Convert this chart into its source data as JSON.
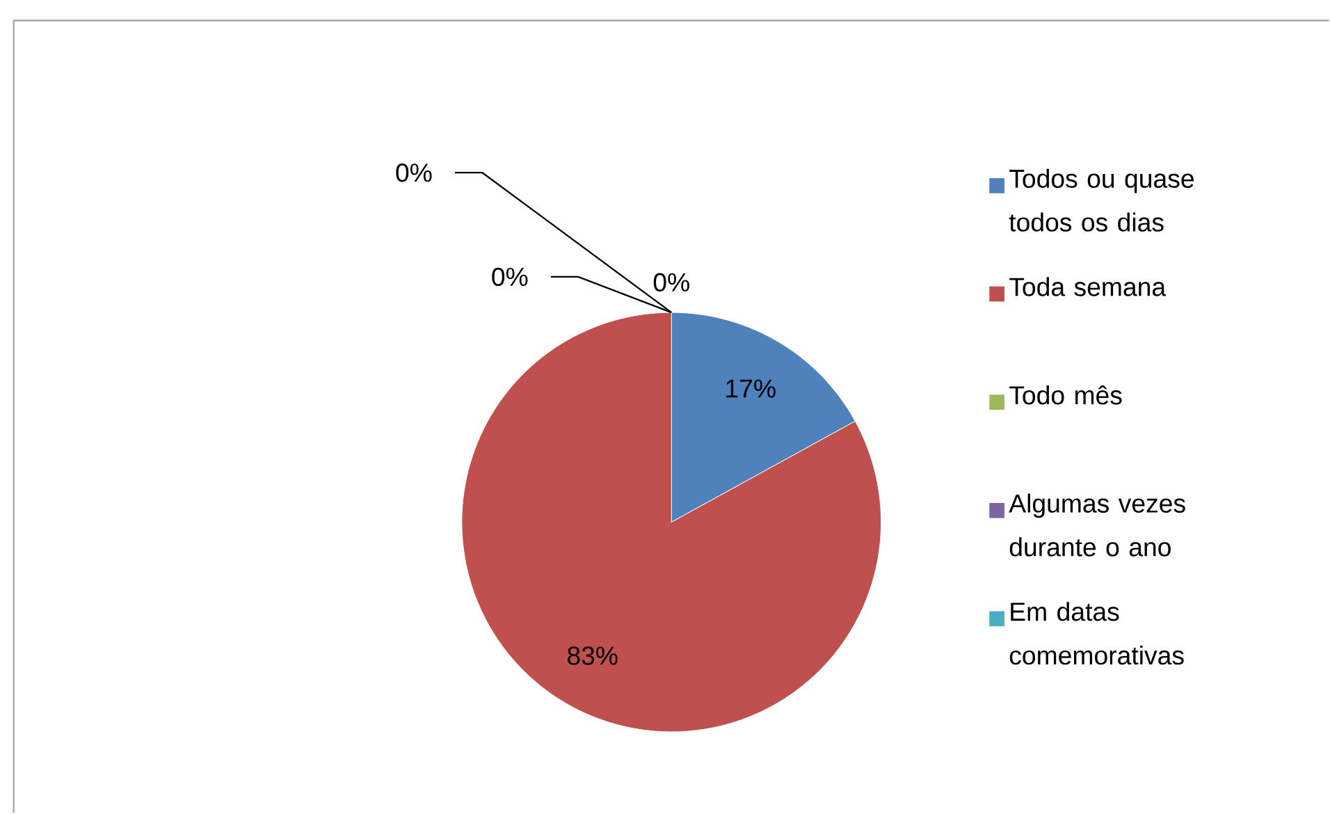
{
  "chart_data": {
    "type": "pie",
    "categories": [
      "Todos ou quase todos os dias",
      "Toda semana",
      "Todo mês",
      "Algumas vezes durante o ano",
      "Em datas comemorativas"
    ],
    "values": [
      17,
      83,
      0,
      0,
      0
    ],
    "colors": [
      "#4f81bd",
      "#c0504d",
      "#9bbb59",
      "#8064a2",
      "#4bacc6"
    ],
    "value_labels": [
      "17%",
      "83%",
      "0%",
      "0%",
      "0%"
    ],
    "legend": "right"
  }
}
